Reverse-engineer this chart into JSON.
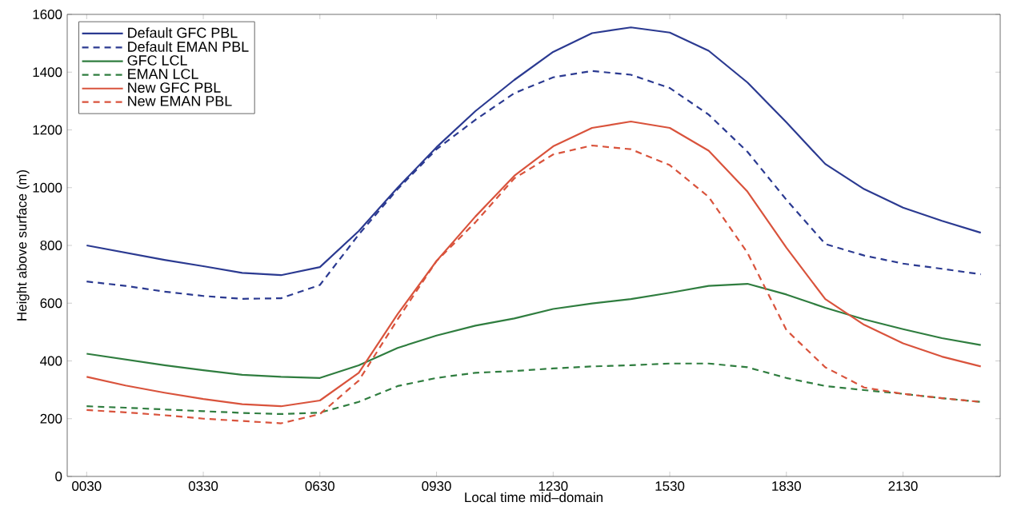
{
  "chart_data": {
    "type": "line",
    "xlabel": "Local time mid–domain",
    "ylabel": "Height above surface (m)",
    "categories": [
      "0030",
      null,
      null,
      "0330",
      null,
      null,
      "0630",
      null,
      null,
      "0930",
      null,
      null,
      "1230",
      null,
      null,
      "1530",
      null,
      null,
      "1830",
      null,
      null,
      "2130",
      null,
      null
    ],
    "ylim": [
      0,
      1600
    ],
    "yticks": [
      0,
      200,
      400,
      600,
      800,
      1000,
      1200,
      1400,
      1600
    ],
    "legend": "top left",
    "grid": false,
    "series": [
      {
        "name": "Default GFC PBL",
        "color": "#2b3a91",
        "line_style": "solid",
        "values": [
          800,
          775,
          750,
          728,
          705,
          697,
          725,
          850,
          1000,
          1140,
          1265,
          1373,
          1470,
          1535,
          1555,
          1537,
          1474,
          1364,
          1226,
          1082,
          995,
          931,
          885,
          844
        ]
      },
      {
        "name": "Default EMAN PBL",
        "color": "#2b3a91",
        "line_style": "dashed",
        "values": [
          675,
          660,
          640,
          625,
          615,
          617,
          663,
          838,
          995,
          1133,
          1235,
          1327,
          1382,
          1404,
          1391,
          1345,
          1253,
          1124,
          958,
          805,
          765,
          737,
          719,
          700
        ]
      },
      {
        "name": "GFC LCL",
        "color": "#2f7d3f",
        "line_style": "solid",
        "values": [
          425,
          405,
          385,
          368,
          352,
          345,
          341,
          385,
          445,
          488,
          522,
          547,
          580,
          599,
          614,
          636,
          660,
          667,
          630,
          584,
          544,
          510,
          479,
          455
        ]
      },
      {
        "name": "EMAN LCL",
        "color": "#2f7d3f",
        "line_style": "dashed",
        "values": [
          243,
          238,
          232,
          226,
          220,
          216,
          221,
          258,
          313,
          341,
          359,
          365,
          374,
          381,
          385,
          391,
          391,
          378,
          341,
          313,
          299,
          286,
          271,
          258
        ]
      },
      {
        "name": "New GFC PBL",
        "color": "#d9533c",
        "line_style": "solid",
        "values": [
          345,
          315,
          290,
          268,
          250,
          243,
          263,
          359,
          562,
          746,
          900,
          1041,
          1143,
          1207,
          1229,
          1207,
          1128,
          986,
          792,
          614,
          525,
          461,
          415,
          381
        ]
      },
      {
        "name": "New EMAN PBL",
        "color": "#d9533c",
        "line_style": "dashed",
        "values": [
          230,
          222,
          212,
          200,
          192,
          184,
          216,
          332,
          544,
          746,
          880,
          1032,
          1115,
          1146,
          1133,
          1078,
          968,
          774,
          507,
          378,
          308,
          286,
          271,
          258
        ]
      }
    ]
  }
}
